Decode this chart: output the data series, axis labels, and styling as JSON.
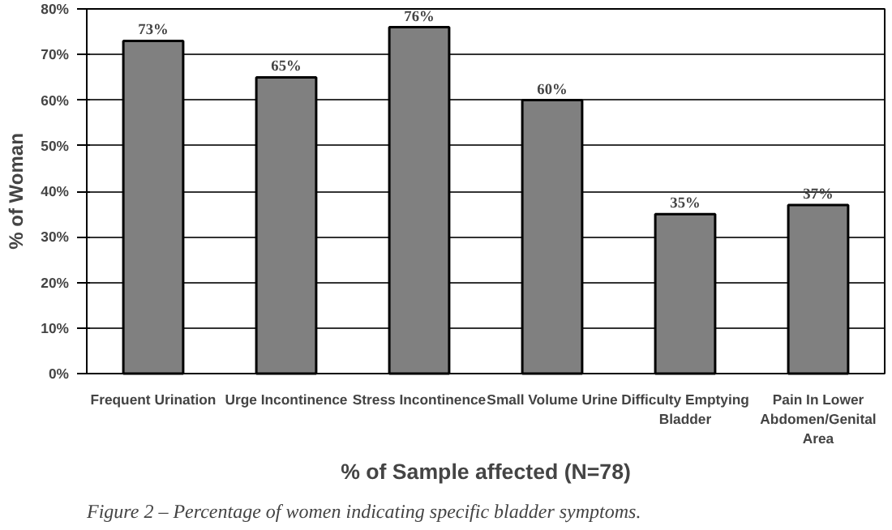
{
  "chart_data": {
    "type": "bar",
    "xlabel": "% of Sample affected (N=78)",
    "ylabel": "% of Woman",
    "categories": [
      "Frequent Urination",
      "Urge Incontinence",
      "Stress Incontinence",
      "Small Volume Urine",
      "Difficulty Emptying Bladder",
      "Pain In Lower Abdomen/Genital Area"
    ],
    "values": [
      73,
      65,
      76,
      60,
      35,
      37
    ],
    "value_labels": [
      "73%",
      "65%",
      "76%",
      "60%",
      "35%",
      "37%"
    ],
    "color": "#808080",
    "ylim": [
      0,
      80
    ],
    "yticks": [
      {
        "value": 0,
        "label": "0%"
      },
      {
        "value": 10,
        "label": "10%"
      },
      {
        "value": 20,
        "label": "20%"
      },
      {
        "value": 30,
        "label": "30%"
      },
      {
        "value": 40,
        "label": "40%"
      },
      {
        "value": 50,
        "label": "50%"
      },
      {
        "value": 60,
        "label": "60%"
      },
      {
        "value": 70,
        "label": "70%"
      },
      {
        "value": 80,
        "label": "80%"
      }
    ],
    "grid": "y",
    "annotations": [
      "Figure 2 – Percentage of women indicating specific bladder symptoms."
    ]
  }
}
